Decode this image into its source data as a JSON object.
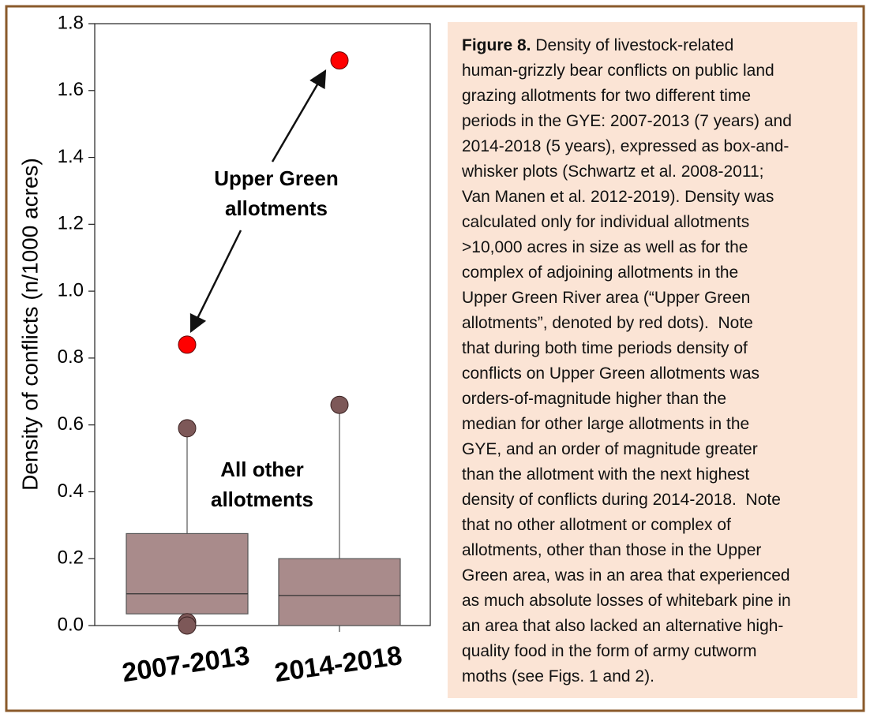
{
  "chart_data": {
    "type": "box",
    "ylabel": "Density of conflicts (n/1000 acres)",
    "categories": [
      "2007-2013",
      "2014-2018"
    ],
    "ylim": [
      0,
      1.8
    ],
    "yticks": [
      {
        "value": 0,
        "label": "0.0"
      },
      {
        "value": 0.2,
        "label": "0.2"
      },
      {
        "value": 0.4,
        "label": "0.4"
      },
      {
        "value": 0.6,
        "label": "0.6"
      },
      {
        "value": 0.8,
        "label": "0.8"
      },
      {
        "value": 1.0,
        "label": "1.0"
      },
      {
        "value": 1.2,
        "label": "1.2"
      },
      {
        "value": 1.4,
        "label": "1.4"
      },
      {
        "value": 1.6,
        "label": "1.6"
      },
      {
        "value": 1.8,
        "label": "1.8"
      }
    ],
    "box_color": "#a98b8b",
    "outlier_color": "#7d5858",
    "boxes": [
      {
        "min": 0.02,
        "q1": 0.035,
        "median": 0.095,
        "q3": 0.275,
        "max": 0.58,
        "outliers": [
          0.59,
          0.01,
          0.0
        ]
      },
      {
        "min": 0.0,
        "q1": 0.0,
        "median": 0.09,
        "q3": 0.2,
        "max": 0.65,
        "outliers": [
          0.66
        ]
      }
    ],
    "highlight": {
      "color": "#ff0000",
      "values": [
        0.84,
        1.69
      ]
    },
    "annotations": [
      [
        "Upper Green",
        "allotments"
      ],
      [
        "All other",
        "allotments"
      ]
    ]
  },
  "caption": {
    "label": "Figure 8.",
    "lines": [
      " Density of livestock-related",
      "human-grizzly bear conflicts on public land",
      "grazing allotments for two different time",
      "periods in the GYE: 2007-2013 (7 years) and",
      "2014-2018 (5 years), expressed as box-and-",
      "whisker plots (Schwartz et al. 2008-2011;",
      "Van Manen et al. 2012-2019). Density was",
      "calculated only for individual allotments",
      ">10,000 acres in size as well as for the",
      "complex of adjoining allotments in the",
      "Upper Green River area (“Upper Green",
      "allotments”, denoted by red dots).  Note",
      "that during both time periods density of",
      "conflicts on Upper Green allotments was",
      "orders-of-magnitude higher than the",
      "median for other large allotments in the",
      "GYE, and an order of magnitude greater",
      "than the allotment with the next highest",
      "density of conflicts during 2014-2018.  Note",
      "that no other allotment or complex of",
      "allotments, other than those in the Upper",
      "Green area, was in an area that experienced",
      "as much absolute losses of whitebark pine in",
      "an area that also lacked an alternative high-",
      "quality food in the form of army cutworm",
      "moths (see Figs. 1 and 2)."
    ]
  }
}
